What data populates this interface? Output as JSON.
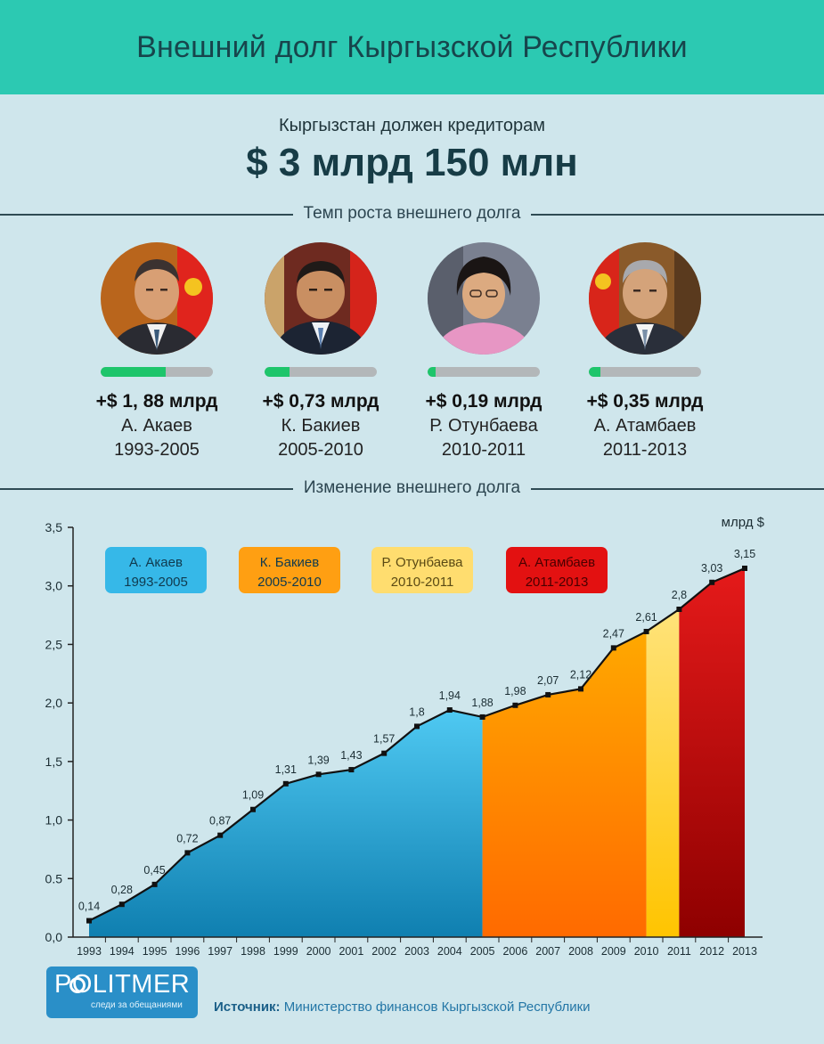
{
  "header": {
    "title": "Внешний долг Кыргызской Республики"
  },
  "summary": {
    "subtitle": "Кыргызстан должен кредиторам",
    "total": "$ 3 млрд 150 млн"
  },
  "sections": {
    "growth_title": "Темп роста внешнего долга",
    "change_title": "Изменение внешнего долга"
  },
  "presidents": [
    {
      "amount": "+$ 1, 88 млрд",
      "name": "А. Акаев",
      "period": "1993-2005",
      "progress": 0.58
    },
    {
      "amount": "+$ 0,73 млрд",
      "name": "К. Бакиев",
      "period": "2005-2010",
      "progress": 0.22
    },
    {
      "amount": "+$ 0,19 млрд",
      "name": "Р. Отунбаева",
      "period": "2010-2011",
      "progress": 0.07
    },
    {
      "amount": "+$ 0,35 млрд",
      "name": "А. Атамбаев",
      "period": "2011-2013",
      "progress": 0.1
    }
  ],
  "chart_data": {
    "type": "area",
    "title": "",
    "unit_label": "млрд $",
    "x": [
      1993,
      1994,
      1995,
      1996,
      1997,
      1998,
      1999,
      2000,
      2001,
      2002,
      2003,
      2004,
      2005,
      2006,
      2007,
      2008,
      2009,
      2010,
      2011,
      2012,
      2013
    ],
    "values": [
      0.14,
      0.28,
      0.45,
      0.72,
      0.87,
      1.09,
      1.31,
      1.39,
      1.43,
      1.57,
      1.8,
      1.94,
      1.88,
      1.98,
      2.07,
      2.12,
      2.47,
      2.61,
      2.8,
      3.03,
      3.15
    ],
    "value_labels": [
      "0,14",
      "0,28",
      "0,45",
      "0,72",
      "0,87",
      "1,09",
      "1,31",
      "1,39",
      "1,43",
      "1,57",
      "1,8",
      "1,94",
      "1,88",
      "1,98",
      "2,07",
      "2,12",
      "2,47",
      "2,61",
      "2,8",
      "3,03",
      "3,15"
    ],
    "y_ticks": [
      0.0,
      0.5,
      1.0,
      1.5,
      2.0,
      2.5,
      3.0,
      3.5
    ],
    "y_tick_labels": [
      "0,0",
      "0.5",
      "1,0",
      "1,5",
      "2,0",
      "2,5",
      "3,0",
      "3,5"
    ],
    "ylim": [
      0,
      3.5
    ],
    "periods": [
      {
        "name": "А. Акаев",
        "years": "1993-2005",
        "start": 1993,
        "end": 2005,
        "color_top": "#4fc9f2",
        "color_bottom": "#0f7fb0"
      },
      {
        "name": "К. Бакиев",
        "years": "2005-2010",
        "start": 2005,
        "end": 2010,
        "color_top": "#ffa800",
        "color_bottom": "#ff6a00"
      },
      {
        "name": "Р. Отунбаева",
        "years": "2010-2011",
        "start": 2010,
        "end": 2011,
        "color_top": "#ffe37a",
        "color_bottom": "#ffc400"
      },
      {
        "name": "А. Атамбаев",
        "years": "2011-2013",
        "start": 2011,
        "end": 2013,
        "color_top": "#e51a1a",
        "color_bottom": "#8e0000"
      }
    ],
    "legend_colors": [
      "#36b8e8",
      "#ff9f12",
      "#ffdd6f",
      "#e31111"
    ]
  },
  "footer": {
    "brand": "POLITMER",
    "tagline": "следи за обещаниями",
    "source_label": "Источник:",
    "source_text": "Министерство финансов Кыргызской Республики"
  }
}
